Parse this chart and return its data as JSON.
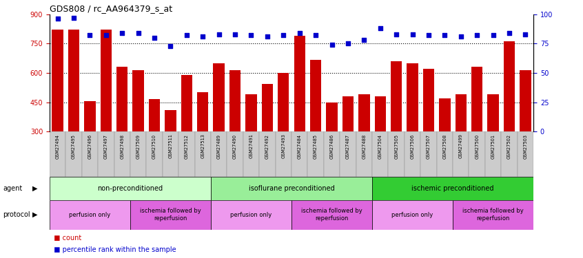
{
  "title": "GDS808 / rc_AA964379_s_at",
  "samples": [
    "GSM27494",
    "GSM27495",
    "GSM27496",
    "GSM27497",
    "GSM27498",
    "GSM27509",
    "GSM27510",
    "GSM27511",
    "GSM27512",
    "GSM27513",
    "GSM27489",
    "GSM27490",
    "GSM27491",
    "GSM27492",
    "GSM27493",
    "GSM27484",
    "GSM27485",
    "GSM27486",
    "GSM27487",
    "GSM27488",
    "GSM27504",
    "GSM27505",
    "GSM27506",
    "GSM27507",
    "GSM27508",
    "GSM27499",
    "GSM27500",
    "GSM27501",
    "GSM27502",
    "GSM27503"
  ],
  "counts": [
    820,
    820,
    455,
    820,
    630,
    615,
    465,
    410,
    590,
    500,
    650,
    615,
    490,
    545,
    600,
    790,
    665,
    450,
    480,
    490,
    480,
    660,
    650,
    620,
    470,
    490,
    630,
    490,
    760,
    615
  ],
  "percentile": [
    96,
    97,
    82,
    82,
    84,
    84,
    80,
    73,
    82,
    81,
    83,
    83,
    82,
    81,
    82,
    84,
    82,
    74,
    75,
    78,
    88,
    83,
    83,
    82,
    82,
    81,
    82,
    82,
    84,
    83
  ],
  "ylim_left": [
    300,
    900
  ],
  "ylim_right": [
    0,
    100
  ],
  "yticks_left": [
    300,
    450,
    600,
    750,
    900
  ],
  "yticks_right": [
    0,
    25,
    50,
    75,
    100
  ],
  "bar_color": "#cc0000",
  "dot_color": "#0000cc",
  "agent_groups": [
    {
      "label": "non-preconditioned",
      "start": 0,
      "end": 10,
      "color": "#ccffcc"
    },
    {
      "label": "isoflurane preconditioned",
      "start": 10,
      "end": 20,
      "color": "#99ee99"
    },
    {
      "label": "ischemic preconditioned",
      "start": 20,
      "end": 30,
      "color": "#33cc33"
    }
  ],
  "protocol_groups": [
    {
      "label": "perfusion only",
      "start": 0,
      "end": 5,
      "color": "#ee99ee"
    },
    {
      "label": "ischemia followed by\nreperfusion",
      "start": 5,
      "end": 10,
      "color": "#dd66dd"
    },
    {
      "label": "perfusion only",
      "start": 10,
      "end": 15,
      "color": "#ee99ee"
    },
    {
      "label": "ischemia followed by\nreperfusion",
      "start": 15,
      "end": 20,
      "color": "#dd66dd"
    },
    {
      "label": "perfusion only",
      "start": 20,
      "end": 25,
      "color": "#ee99ee"
    },
    {
      "label": "ischemia followed by\nreperfusion",
      "start": 25,
      "end": 30,
      "color": "#dd66dd"
    }
  ],
  "legend_items": [
    {
      "label": "count",
      "color": "#cc0000"
    },
    {
      "label": "percentile rank within the sample",
      "color": "#0000cc"
    }
  ],
  "tick_label_color_left": "#cc0000",
  "tick_label_color_right": "#0000cc",
  "xtick_bg_color": "#cccccc",
  "grid_yticks": [
    450,
    600,
    750
  ]
}
